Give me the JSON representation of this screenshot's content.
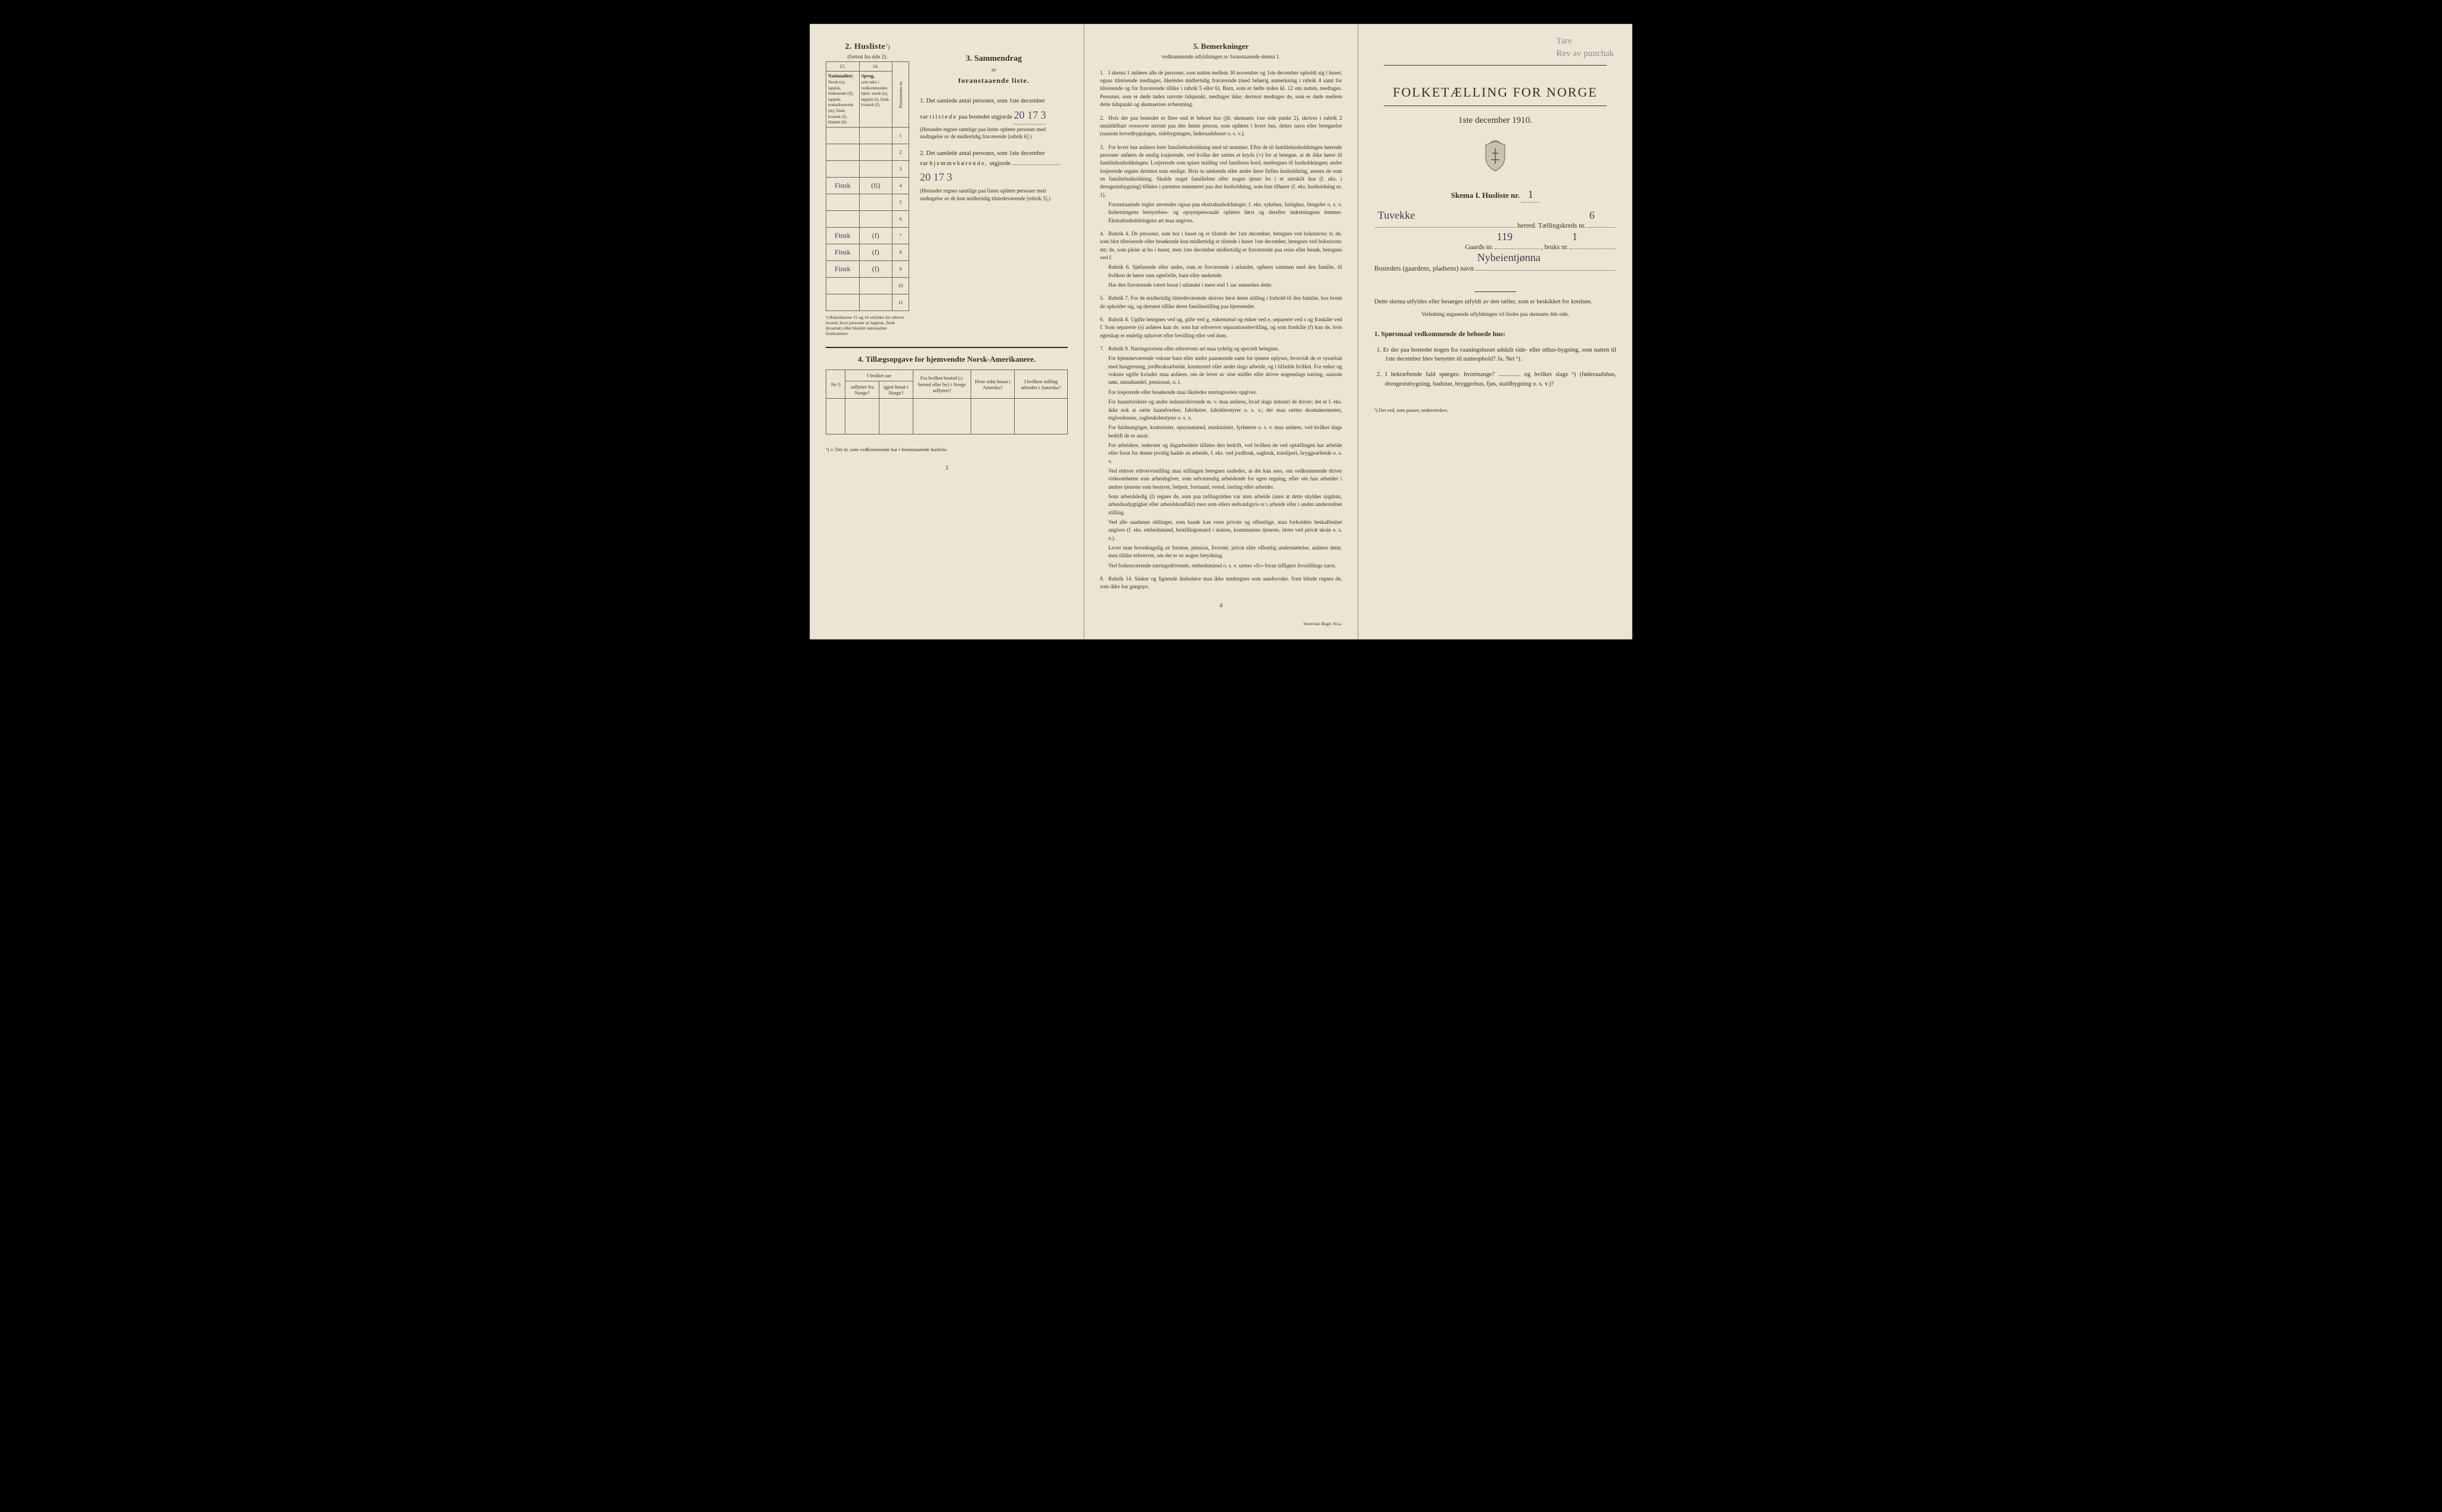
{
  "left": {
    "husliste": {
      "title": "2. Husliste",
      "sup": "1",
      "paren": ")",
      "sub": "(fortsat fra side 2)."
    },
    "table": {
      "col15": "15.",
      "col16": "16.",
      "head15_title": "Nationalitet.",
      "head15_body": "Norsk (n), lappisk, fastboende (lf), lappisk, nomadiserende (ln), finsk, kvænsk (f), blandet (b).",
      "head16_title": "Sprog,",
      "head16_body": "som tales i vedkommendes hjem: norsk (n), lappisk (l), finsk, kvænsk (f).",
      "side_label": "Personernes nr.",
      "rows": [
        {
          "c15": "",
          "c16": "",
          "n": "1"
        },
        {
          "c15": "",
          "c16": "",
          "n": "2"
        },
        {
          "c15": "",
          "c16": "",
          "n": "3"
        },
        {
          "c15": "Finsk",
          "c16": "(fi)",
          "n": "4"
        },
        {
          "c15": "",
          "c16": "",
          "n": "5"
        },
        {
          "c15": "",
          "c16": "",
          "n": "6"
        },
        {
          "c15": "Finsk",
          "c16": "(f)",
          "n": "7"
        },
        {
          "c15": "Finsk",
          "c16": "(f)",
          "n": "8"
        },
        {
          "c15": "Finsk",
          "c16": "(f)",
          "n": "9"
        },
        {
          "c15": "",
          "c16": "",
          "n": "10"
        },
        {
          "c15": "",
          "c16": "",
          "n": "11"
        }
      ],
      "footnote": "¹) Rubrikkerne 15 og 16 utfyldes for ethvert bosted, hvor personer av lappisk, finsk (kvænsk) eller blandet nationalitet forekommer."
    },
    "sammendrag": {
      "title": "3. Sammendrag",
      "av": "av",
      "subtitle": "foranstaaende liste.",
      "item1_pre": "1. Det samlede antal personer, som 1ste december",
      "item1_mid1": "var",
      "item1_mid2": "tilstede",
      "item1_mid3": "paa bostedet utgjorde",
      "item1_hw": "20 17 3",
      "item1_note": "(Herunder regnes samtlige paa listen opførte personer med undtagelse av de midlertidig fraværende [rubrik 6].)",
      "item2_pre": "2. Det samlede antal personer, som 1ste december",
      "item2_mid1": "var",
      "item2_mid2": "hjemmehørende,",
      "item2_mid3": "utgjorde",
      "item2_hw": "20 17 3",
      "item2_note": "(Herunder regnes samtlige paa listen opførte personer med undtagelse av de kun midlertidig tilstedeværende [rubrik 5].)"
    },
    "tillaeg": {
      "title": "4. Tillægsopgave for hjemvendte Norsk-Amerikanere.",
      "cols": [
        "Nr.²)",
        "I hvilket aar",
        "Fra hvilket bosted (ɔ: herred eller by) i Norge utflyttet?",
        "Hvor sidst bosat i Amerika?",
        "I hvilken stilling arbeidet i Amerika?"
      ],
      "subcol_a": "utflyttet fra Norge?",
      "subcol_b": "igjen bosat i Norge?"
    },
    "bottom_note": "²) ɔ: Det nr. som vedkommende har i foranstaaende husliste.",
    "pagenum": "3"
  },
  "middle": {
    "title": "5. Bemerkninger",
    "sub": "vedkommende utfyldningen av foranstaaende skema 1.",
    "items": [
      {
        "n": "1.",
        "t": "I skema 1 anføres alle de personer, som natten mellem 30 november og 1ste december opholdt sig i huset; ogsaa tilreisende medtages; likeledes midlertidig fraværende (med behørig anmerkning i rubrik 4 samt for tilreisende og for fraværende tillike i rubrik 5 eller 6). Barn, som er fødte inden kl. 12 om natten, medtages. Personer, som er døde inden nævnte tidspunkt, medtages ikke; derimot medtages de, som er døde mellem dette tidspunkt og skemaernes avhentning."
      },
      {
        "n": "2.",
        "t": "Hvis der paa bostedet er flere end ét beboet hus (jfr. skemaets 1ste side punkt 2), skrives i rubrik 2 umiddelbart ovenover navnet paa den første person, som opføres i hvert hus, dettes navn eller betegnelse (saasom hovedbygningen, sidebygningen, føderaadshuset o. s. v.)."
      },
      {
        "n": "3.",
        "t": "For hvert hus anføres hver familiehusholdning med sit nummer. Efter de til familiehusholdningen hørende personer anføres de enslig losjerende, ved hvilke der sættes et kryds (×) for at betegne, at de ikke hører til familiehusholdningen. Losjerende som spiser middag ved familiens bord, medregnes til husholdningen; andre losjerende regnes derimot som enslige. Hvis to søskende eller andre fører fælles husholdning, ansees de som en familiehusholdning. Skulde noget familielem eller nogen tjener bo i et særskilt hus (f. eks. i drengestubygning) tilføies i parentes nummeret paa den husholdning, som han tilhører (f. eks. husholdning nr. 1).",
        "subs": [
          "Foranstaaende regler anvendes ogsaa paa ekstrahusholdninger, f. eks. sykehus, fattighus, fængsler o. s. v. Indretningens bestyrelses- og opsynspersonale opføres først og derefter indretningens lemmer. Ekstrahusholdningens art maa angives."
        ]
      },
      {
        "n": "4.",
        "t": "Rubrik 4. De personer, som bor i huset og er tilstede der 1ste december, betegnes ved bokstaven: b; de, som blot tilreisende eller besøkende kun midlertidig er tilstede i huset 1ste december, betegnes ved bokstaven: mt; de, som pleier at bo i huset, men 1ste december midlertidig er fraværende paa reise eller besøk, betegnes ved f.",
        "subs": [
          "Rubrik 6. Sjøfarende eller andre, som er fraværende i utlandet, opføres sammen med den familie, til hvilken de hører som egtefælle, barn eller søskende.",
          "Har den fraværende været bosat i utlandet i mere end 1 aar anmerkes dette."
        ]
      },
      {
        "n": "5.",
        "t": "Rubrik 7. For de midlertidig tilstedeværende skrives først deres stilling i forhold til den familie, hos hvem de opholder sig, og dernæst tillike deres familiestilling paa hjemstedet."
      },
      {
        "n": "6.",
        "t": "Rubrik 8. Ugifte betegnes ved ug, gifte ved g, enkemænd og enker ved e, separerte ved s og fraskilte ved f. Som separerte (s) anføres kun de, som har erhvervet separationsbevilling, og som fraskilte (f) kun de, hvis egteskap er endelig ophævet efter bevilling eller ved dom."
      },
      {
        "n": "7.",
        "t": "Rubrik 9. Næringsveiens eller erhvervets art maa tydelig og specielt betegnes.",
        "subs": [
          "For hjemmeværende voksne barn eller andre paarørende samt for tjenere oplyses, hvorvidt de er sysselsat med husgjerning, jordbruksarbeide, kreaturstel eller andet slags arbeide, og i tilfælde hvilket. For enker og voksne ugifte kvinder maa anføres, om de lever av sine midler eller driver nogenslags næring, saasom søm, smaahandel, pensionat, o. l.",
          "For losjerende eller besøkende maa likeledes næringsveien opgives.",
          "For haandverkere og andre industridrivende m. v. maa anføres, hvad slags industri de driver; det er f. eks. ikke nok at sætte haandverker, fabrikeier, fabrikbestyrer o. s. v.; der maa sættes skomakermester, teglverkseier, sagbruksbestyrer o. s. v.",
          "For fuldmægtiger, kontorister, opsynsmænd, maskinister, fyrbøtere o. s. v. maa anføres, ved hvilket slags bedrift de er ansat.",
          "For arbeidere, inderster og dagarbeidere tilføies den bedrift, ved hvilken de ved optællingen har arbeide eller forut for denne jevnlig hadde sit arbeide, f. eks. ved jordbruk, sagbruk, træsliperi, bryggearbeide o. s. v.",
          "Ved enhver erhvervsstilling maa stillingen betegnes saaledes, at det kan sees, om vedkommende driver virksomheten som arbeidsgiver, som selvstændig arbeidende for egen regning, eller om han arbeider i andres tjeneste som bestyrer, betjent, formand, svend, lærling eller arbeider.",
          "Som arbeidsledig (l) regnes de, som paa tællingstiden var uten arbeide (uten at dette skyldes sygdom, arbeidsudygtighet eller arbeidskonflikt) men som ellers sedvanligvis er i arbeide eller i anden underordnet stilling.",
          "Ved alle saadanne stillinger, som baade kan være private og offentlige, maa forholdets beskaffenhet angives (f. eks. embedsmand, bestillingsmand i statens, kommunens tjeneste, lærer ved privat skole o. s. v.).",
          "Lever man hovedsagelig av formue, pension, livrente, privat eller offentlig understøttelse, anføres dette, men tillike erhvervet, om det er av nogen betydning.",
          "Ved forhenværende næringsdrivende, embedsmænd o. s. v. sættes «fv» foran tidligere livsstillings navn."
        ]
      },
      {
        "n": "8.",
        "t": "Rubrik 14. Sinker og lignende åndssløve maa ikke medregnes som aandssvake. Som blinde regnes de, som ikke har gangsyn."
      }
    ],
    "pagenum": "4",
    "printer": "Steen'ske Bogtr. Kr.a."
  },
  "right": {
    "hw_top1": "Tare",
    "hw_top2": "Rev av punchak",
    "main_title": "FOLKETÆLLING FOR NORGE",
    "date": "1ste december 1910.",
    "skema": "Skema I.   Husliste nr.",
    "skema_hw": "1",
    "line1_hw": "Tuvekke",
    "line1_label": "herred.  Tællingskreds nr.",
    "line1_hw2": "6",
    "line2_a": "Gaards nr.",
    "line2_hw_a": "119",
    "line2_b": ", bruks nr.",
    "line2_hw_b": "1",
    "line3_label": "Bostedets (gaardens, pladsens) navn",
    "line3_hw": "Nybeientjønna",
    "desc": "Dette skema utfyldes eller besørges utfyldt av den tæller, som er beskikket for kredsen.",
    "desc_small": "Veiledning angaaende utfyldningen vil findes paa skemaets 4de side.",
    "sporsmaal_title": "1. Spørsmaal vedkommende de beboede hus:",
    "q1": "1. Er der paa bostedet nogen fra vaaningshuset adskilt side- eller uthus-bygning, som natten til 1ste december blev benyttet til natteophold?   Ja.   Nei ¹).",
    "q2": "2. I bekræftende fald spørges: hvormange? .............. og hvilket slags ¹) (føderaadshus, drengestubygning, badstue, bryggerhus, fjøs, staldbygning o. s. v.)?",
    "footnote": "¹) Det ord, som passer, understrekes."
  }
}
